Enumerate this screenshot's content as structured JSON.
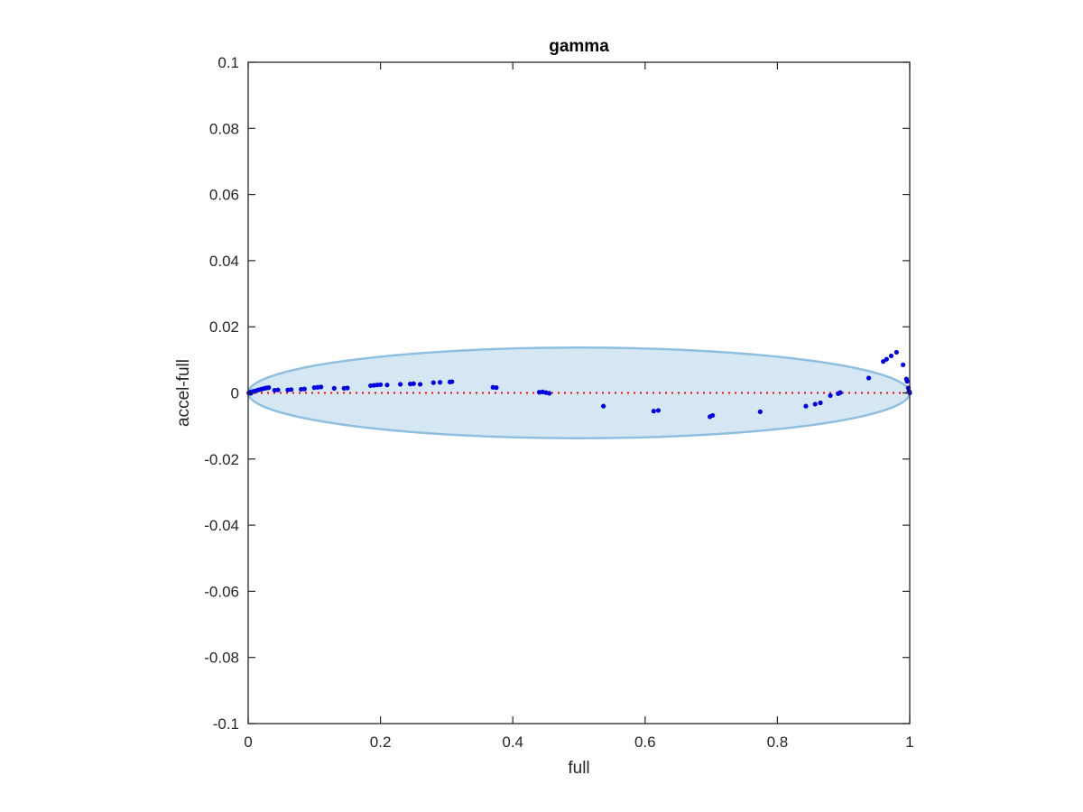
{
  "chart_data": {
    "type": "scatter",
    "title": "gamma",
    "xlabel": "full",
    "ylabel": "accel-full",
    "xlim": [
      0,
      1
    ],
    "ylim": [
      -0.1,
      0.1
    ],
    "xticks": [
      0,
      0.2,
      0.4,
      0.6,
      0.8,
      1
    ],
    "xtick_labels": [
      "0",
      "0.2",
      "0.4",
      "0.6",
      "0.8",
      "1"
    ],
    "yticks": [
      -0.1,
      -0.08,
      -0.06,
      -0.04,
      -0.02,
      0,
      0.02,
      0.04,
      0.06,
      0.08,
      0.1
    ],
    "ytick_labels": [
      "-0.1",
      "-0.08",
      "-0.06",
      "-0.04",
      "-0.02",
      "0",
      "0.02",
      "0.04",
      "0.06",
      "0.08",
      "0.1"
    ],
    "grid": false,
    "reference_line": {
      "y": 0,
      "style": "dotted",
      "color": "#ff0000"
    },
    "ellipse": {
      "cx": 0.5,
      "cy": 0,
      "rx": 0.5,
      "ry": 0.0137,
      "fill": "#d6e7f4",
      "stroke": "#8fbfe0"
    },
    "series": [
      {
        "color": "#0000e6",
        "points": [
          [
            0.001,
            0.0
          ],
          [
            0.002,
            0.0001
          ],
          [
            0.003,
            0.0002
          ],
          [
            0.004,
            -0.0001
          ],
          [
            0.005,
            0.0003
          ],
          [
            0.007,
            0.0004
          ],
          [
            0.009,
            0.0005
          ],
          [
            0.011,
            0.0006
          ],
          [
            0.013,
            0.0007
          ],
          [
            0.015,
            0.0009
          ],
          [
            0.018,
            0.001
          ],
          [
            0.021,
            0.0012
          ],
          [
            0.025,
            0.0014
          ],
          [
            0.028,
            0.0015
          ],
          [
            0.031,
            0.0016
          ],
          [
            0.04,
            0.0008
          ],
          [
            0.045,
            0.0009
          ],
          [
            0.06,
            0.0009
          ],
          [
            0.065,
            0.001
          ],
          [
            0.08,
            0.0011
          ],
          [
            0.085,
            0.0012
          ],
          [
            0.1,
            0.0016
          ],
          [
            0.105,
            0.0017
          ],
          [
            0.11,
            0.0018
          ],
          [
            0.13,
            0.0014
          ],
          [
            0.145,
            0.0014
          ],
          [
            0.15,
            0.0015
          ],
          [
            0.185,
            0.0022
          ],
          [
            0.19,
            0.0023
          ],
          [
            0.195,
            0.0024
          ],
          [
            0.2,
            0.0025
          ],
          [
            0.21,
            0.0024
          ],
          [
            0.23,
            0.0026
          ],
          [
            0.245,
            0.0027
          ],
          [
            0.25,
            0.0028
          ],
          [
            0.26,
            0.0026
          ],
          [
            0.28,
            0.0031
          ],
          [
            0.29,
            0.0032
          ],
          [
            0.305,
            0.0033
          ],
          [
            0.308,
            0.0034
          ],
          [
            0.37,
            0.0017
          ],
          [
            0.375,
            0.0016
          ],
          [
            0.44,
            0.0002
          ],
          [
            0.445,
            0.0003
          ],
          [
            0.45,
            0.0001
          ],
          [
            0.455,
            -0.0001
          ],
          [
            0.537,
            -0.004
          ],
          [
            0.613,
            -0.0055
          ],
          [
            0.62,
            -0.0053
          ],
          [
            0.698,
            -0.0072
          ],
          [
            0.702,
            -0.0068
          ],
          [
            0.774,
            -0.0057
          ],
          [
            0.843,
            -0.004
          ],
          [
            0.857,
            -0.0034
          ],
          [
            0.865,
            -0.003
          ],
          [
            0.88,
            -0.0008
          ],
          [
            0.892,
            -0.0002
          ],
          [
            0.895,
            0.0001
          ],
          [
            0.938,
            0.0045
          ],
          [
            0.96,
            0.0095
          ],
          [
            0.965,
            0.0102
          ],
          [
            0.972,
            0.0112
          ],
          [
            0.98,
            0.0123
          ],
          [
            0.99,
            0.0085
          ],
          [
            0.995,
            0.0042
          ],
          [
            0.996,
            0.0035
          ],
          [
            0.998,
            0.0015
          ],
          [
            0.999,
            0.0005
          ],
          [
            1.0,
            0.0
          ]
        ]
      }
    ]
  }
}
